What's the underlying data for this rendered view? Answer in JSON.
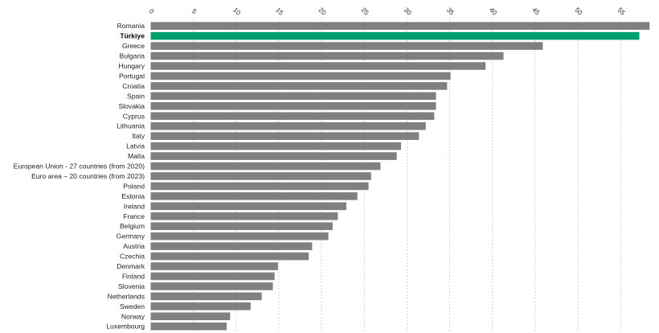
{
  "chart_data": {
    "type": "bar",
    "orientation": "horizontal",
    "title": "",
    "xlabel": "",
    "ylabel": "",
    "xlim": [
      0,
      58.5
    ],
    "x_ticks": [
      0,
      5,
      10,
      15,
      20,
      25,
      30,
      35,
      40,
      45,
      50,
      55
    ],
    "tick_label_rotation": "diagonal",
    "grid": "vertical dashed",
    "legend": "none",
    "highlight": "Türkiye",
    "colors": {
      "bar": "#808080",
      "highlight": "#00a06e",
      "grid": "#c8c8c8"
    },
    "categories": [
      "Romania",
      "Türkiye",
      "Greece",
      "Bulgaria",
      "Hungary",
      "Portugal",
      "Croatia",
      "Spain",
      "Slovakia",
      "Cyprus",
      "Lithuania",
      "Italy",
      "Latvia",
      "Malta",
      "European Union - 27 countries (from 2020)",
      "Euro area – 20 countries (from 2023)",
      "Poland",
      "Estonia",
      "Ireland",
      "France",
      "Belgium",
      "Germany",
      "Austria",
      "Czechia",
      "Denmark",
      "Finland",
      "Slovenia",
      "Netherlands",
      "Sweden",
      "Norway",
      "Luxembourg"
    ],
    "values": [
      58.4,
      57.2,
      45.9,
      41.3,
      39.2,
      35.1,
      34.7,
      33.4,
      33.4,
      33.2,
      32.2,
      31.4,
      29.3,
      28.8,
      26.9,
      25.8,
      25.5,
      24.2,
      22.9,
      21.9,
      21.3,
      20.8,
      18.9,
      18.5,
      14.9,
      14.5,
      14.3,
      13.0,
      11.7,
      9.3,
      8.9
    ]
  }
}
